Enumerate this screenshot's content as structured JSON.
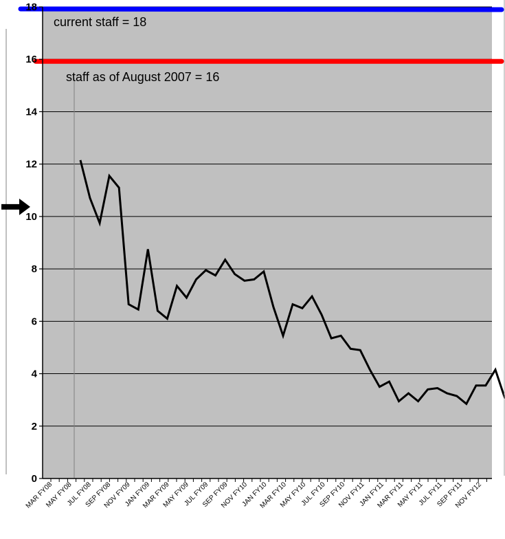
{
  "chart_data": {
    "type": "line",
    "title": "",
    "xlabel": "",
    "ylabel": "",
    "ylim": [
      0,
      18
    ],
    "yticks": [
      "0",
      "2",
      "4",
      "6",
      "8",
      "10",
      "12",
      "14",
      "16",
      "18"
    ],
    "grid": true,
    "x_tick_labels": [
      "MAR FY08",
      "MAY FY08",
      "JUL FY08",
      "SEP FY08",
      "NOV FY09",
      "JAN FY09",
      "MAR FY09",
      "MAY FY09",
      "JUL FY09",
      "SEP FY09",
      "NOV FY10",
      "JAN FY10",
      "MAR FY10",
      "MAY FY10",
      "JUL FY10",
      "SEP FY10",
      "NOV FY11",
      "JAN FY11",
      "MAR FY11",
      "MAY FY11",
      "JUL FY11",
      "SEP FY11",
      "NOV FY12"
    ],
    "series": [
      {
        "values": [
          12.15,
          10.7,
          9.75,
          11.55,
          11.1,
          6.65,
          6.45,
          8.75,
          6.4,
          6.1,
          7.35,
          6.9,
          7.6,
          7.95,
          7.75,
          8.35,
          7.8,
          7.55,
          7.6,
          7.9,
          6.55,
          5.45,
          6.65,
          6.5,
          6.95,
          6.25,
          5.35,
          5.45,
          4.95,
          4.9,
          4.15,
          3.5,
          3.7,
          2.95,
          3.25,
          2.95,
          3.4,
          3.45,
          3.25,
          3.15,
          2.85,
          3.55,
          3.55,
          4.15,
          3.05
        ],
        "color": "#000000"
      }
    ],
    "reference_lines": [
      {
        "value": 18,
        "label": "current staff = 18",
        "color": "#0000ff"
      },
      {
        "value": 16,
        "label": "staff as of August 2007 = 16",
        "color": "#ff0000"
      }
    ],
    "marker_value": 10,
    "plot_background": "#c0c0c0"
  }
}
